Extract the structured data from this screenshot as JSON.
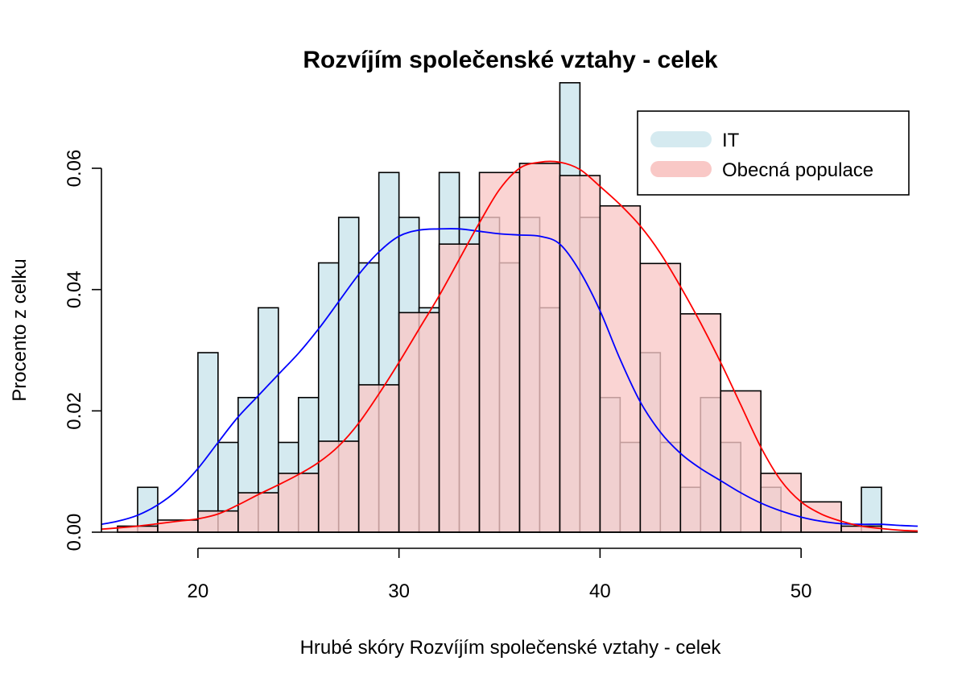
{
  "chart_data": {
    "type": "histogram",
    "title": "Rozvíjím společenské vztahy - celek",
    "xlabel": "Hrubé skóry Rozvíjím společenské vztahy - celek",
    "ylabel": "Procento z celku",
    "xlim": [
      15.2,
      55.8
    ],
    "ylim": [
      0,
      0.075
    ],
    "x_ticks": [
      20,
      30,
      40,
      50
    ],
    "y_ticks": [
      0.0,
      0.02,
      0.04,
      0.06
    ],
    "y_tick_labels": [
      "0.00",
      "0.02",
      "0.04",
      "0.06"
    ],
    "legend_position": "top-right",
    "series": [
      {
        "name": "IT",
        "color": "#d5eaf0",
        "density_color": "#0000ff",
        "bin_width": 1,
        "bins": [
          {
            "x0": 17,
            "x1": 18,
            "y": 0.0074
          },
          {
            "x0": 20,
            "x1": 21,
            "y": 0.0296
          },
          {
            "x0": 21,
            "x1": 22,
            "y": 0.0148
          },
          {
            "x0": 22,
            "x1": 23,
            "y": 0.0222
          },
          {
            "x0": 23,
            "x1": 24,
            "y": 0.037
          },
          {
            "x0": 24,
            "x1": 25,
            "y": 0.0148
          },
          {
            "x0": 25,
            "x1": 26,
            "y": 0.0222
          },
          {
            "x0": 26,
            "x1": 27,
            "y": 0.0444
          },
          {
            "x0": 27,
            "x1": 28,
            "y": 0.0519
          },
          {
            "x0": 28,
            "x1": 29,
            "y": 0.0444
          },
          {
            "x0": 29,
            "x1": 30,
            "y": 0.0593
          },
          {
            "x0": 30,
            "x1": 31,
            "y": 0.0519
          },
          {
            "x0": 31,
            "x1": 32,
            "y": 0.037
          },
          {
            "x0": 32,
            "x1": 33,
            "y": 0.0593
          },
          {
            "x0": 33,
            "x1": 34,
            "y": 0.0519
          },
          {
            "x0": 34,
            "x1": 35,
            "y": 0.0519
          },
          {
            "x0": 35,
            "x1": 36,
            "y": 0.0444
          },
          {
            "x0": 36,
            "x1": 37,
            "y": 0.0519
          },
          {
            "x0": 37,
            "x1": 38,
            "y": 0.037
          },
          {
            "x0": 38,
            "x1": 39,
            "y": 0.0741
          },
          {
            "x0": 39,
            "x1": 40,
            "y": 0.0519
          },
          {
            "x0": 40,
            "x1": 41,
            "y": 0.0222
          },
          {
            "x0": 41,
            "x1": 42,
            "y": 0.0148
          },
          {
            "x0": 42,
            "x1": 43,
            "y": 0.0296
          },
          {
            "x0": 43,
            "x1": 44,
            "y": 0.0148
          },
          {
            "x0": 44,
            "x1": 45,
            "y": 0.0074
          },
          {
            "x0": 45,
            "x1": 46,
            "y": 0.0222
          },
          {
            "x0": 46,
            "x1": 47,
            "y": 0.0148
          },
          {
            "x0": 48,
            "x1": 49,
            "y": 0.0074
          },
          {
            "x0": 53,
            "x1": 54,
            "y": 0.0074
          }
        ],
        "density": [
          [
            15.2,
            0.0013
          ],
          [
            16,
            0.0018
          ],
          [
            17,
            0.0028
          ],
          [
            18,
            0.0045
          ],
          [
            19,
            0.007
          ],
          [
            20,
            0.0105
          ],
          [
            21,
            0.0148
          ],
          [
            22,
            0.019
          ],
          [
            23,
            0.0225
          ],
          [
            24,
            0.026
          ],
          [
            25,
            0.0295
          ],
          [
            26,
            0.0335
          ],
          [
            27,
            0.038
          ],
          [
            28,
            0.0425
          ],
          [
            29,
            0.0462
          ],
          [
            30,
            0.0488
          ],
          [
            31,
            0.0498
          ],
          [
            32,
            0.05
          ],
          [
            33,
            0.05
          ],
          [
            34,
            0.0496
          ],
          [
            35,
            0.0492
          ],
          [
            36,
            0.049
          ],
          [
            37,
            0.0488
          ],
          [
            38,
            0.0475
          ],
          [
            39,
            0.043
          ],
          [
            40,
            0.0365
          ],
          [
            41,
            0.0285
          ],
          [
            42,
            0.0215
          ],
          [
            43,
            0.0165
          ],
          [
            44,
            0.013
          ],
          [
            45,
            0.0105
          ],
          [
            46,
            0.0085
          ],
          [
            47,
            0.0065
          ],
          [
            48,
            0.0048
          ],
          [
            49,
            0.0035
          ],
          [
            50,
            0.0025
          ],
          [
            51,
            0.0018
          ],
          [
            52,
            0.0014
          ],
          [
            53,
            0.0013
          ],
          [
            54,
            0.0013
          ],
          [
            55,
            0.0011
          ],
          [
            55.8,
            0.001
          ]
        ]
      },
      {
        "name": "Obecná populace",
        "color": "#f9c8c6",
        "density_color": "#ff0000",
        "bin_width": 2,
        "bins": [
          {
            "x0": 16,
            "x1": 18,
            "y": 0.001
          },
          {
            "x0": 18,
            "x1": 20,
            "y": 0.002
          },
          {
            "x0": 20,
            "x1": 22,
            "y": 0.0035
          },
          {
            "x0": 22,
            "x1": 24,
            "y": 0.0065
          },
          {
            "x0": 24,
            "x1": 26,
            "y": 0.0097
          },
          {
            "x0": 26,
            "x1": 28,
            "y": 0.015
          },
          {
            "x0": 28,
            "x1": 30,
            "y": 0.0243
          },
          {
            "x0": 30,
            "x1": 32,
            "y": 0.0362
          },
          {
            "x0": 32,
            "x1": 34,
            "y": 0.0475
          },
          {
            "x0": 34,
            "x1": 36,
            "y": 0.0593
          },
          {
            "x0": 36,
            "x1": 38,
            "y": 0.0608
          },
          {
            "x0": 38,
            "x1": 40,
            "y": 0.0588
          },
          {
            "x0": 40,
            "x1": 42,
            "y": 0.0538
          },
          {
            "x0": 42,
            "x1": 44,
            "y": 0.0443
          },
          {
            "x0": 44,
            "x1": 46,
            "y": 0.036
          },
          {
            "x0": 46,
            "x1": 48,
            "y": 0.0233
          },
          {
            "x0": 48,
            "x1": 50,
            "y": 0.0097
          },
          {
            "x0": 50,
            "x1": 52,
            "y": 0.005
          },
          {
            "x0": 52,
            "x1": 54,
            "y": 0.001
          }
        ],
        "density": [
          [
            15.2,
            0.0005
          ],
          [
            16,
            0.0007
          ],
          [
            17,
            0.001
          ],
          [
            18,
            0.0014
          ],
          [
            19,
            0.0018
          ],
          [
            20,
            0.0022
          ],
          [
            21,
            0.003
          ],
          [
            22,
            0.0045
          ],
          [
            23,
            0.0062
          ],
          [
            24,
            0.0078
          ],
          [
            25,
            0.0095
          ],
          [
            26,
            0.0115
          ],
          [
            27,
            0.0142
          ],
          [
            28,
            0.018
          ],
          [
            29,
            0.0228
          ],
          [
            30,
            0.028
          ],
          [
            31,
            0.0335
          ],
          [
            32,
            0.039
          ],
          [
            33,
            0.045
          ],
          [
            34,
            0.051
          ],
          [
            35,
            0.0565
          ],
          [
            36,
            0.06
          ],
          [
            37,
            0.061
          ],
          [
            38,
            0.061
          ],
          [
            39,
            0.0598
          ],
          [
            40,
            0.057
          ],
          [
            41,
            0.054
          ],
          [
            42,
            0.0505
          ],
          [
            43,
            0.046
          ],
          [
            44,
            0.0405
          ],
          [
            45,
            0.0345
          ],
          [
            46,
            0.028
          ],
          [
            47,
            0.021
          ],
          [
            48,
            0.014
          ],
          [
            49,
            0.0085
          ],
          [
            50,
            0.005
          ],
          [
            51,
            0.003
          ],
          [
            52,
            0.0018
          ],
          [
            53,
            0.001
          ],
          [
            54,
            0.0006
          ],
          [
            55,
            0.0003
          ],
          [
            55.8,
            0.0002
          ]
        ]
      }
    ]
  }
}
